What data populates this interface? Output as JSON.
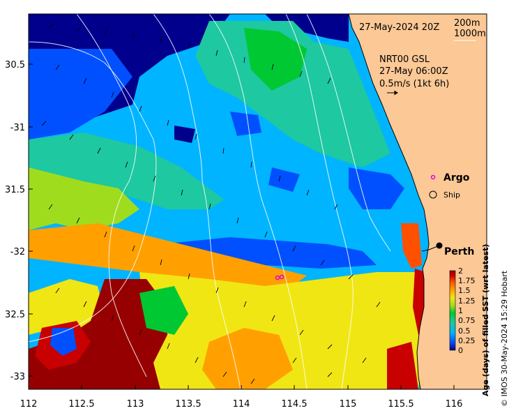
{
  "map": {
    "date_label": "27-May-2024 20Z",
    "contour_legend": [
      "200m",
      "1000m"
    ],
    "current_source": "NRT00 GSL",
    "current_time": "27-May 06:00Z",
    "current_scale": "0.5m/s (1kt 6h)",
    "longitude_ticks": [
      "112",
      "112.5",
      "113",
      "113.5",
      "114",
      "114.5",
      "115",
      "115.5",
      "116"
    ],
    "latitude_ticks": [
      "30.5",
      "-31",
      "31.5",
      "-32",
      "32.5",
      "-33"
    ],
    "colorbar": {
      "label": "Age (days) of filled SST (wrt latest)",
      "ticks": [
        "2",
        "1.75",
        "1.5",
        "1.25",
        "1",
        "0.75",
        "0.5",
        "0.25",
        "0"
      ],
      "range": [
        0,
        2
      ],
      "colors": [
        "#00008c",
        "#0050ff",
        "#00b4ff",
        "#1ec8a0",
        "#00c832",
        "#a0dc1e",
        "#f0e614",
        "#ffa000",
        "#ff5000",
        "#c80000",
        "#960000"
      ]
    },
    "markers": [
      {
        "label": "Argo",
        "color": "#e000e0"
      },
      {
        "label": "Ship",
        "color": "#000000"
      },
      {
        "label": "Perth",
        "color": "#000000"
      }
    ],
    "land_color": "#fbc896",
    "credit": "© IMOS 30-May-2024 15:29 Hobart"
  }
}
